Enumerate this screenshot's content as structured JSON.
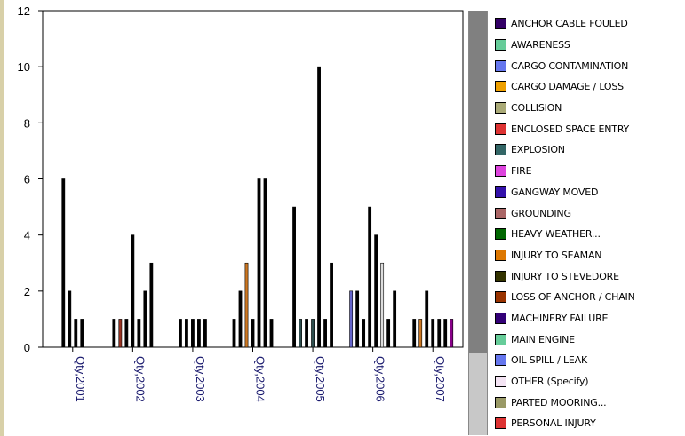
{
  "chart_data": {
    "type": "bar",
    "ylim": [
      0,
      12
    ],
    "yticks": [
      "0",
      "2",
      "4",
      "6",
      "8",
      "10",
      "12"
    ],
    "grid": true,
    "legend_position": "right",
    "categories": [
      "Qty,2001",
      "Qty,2002",
      "Qty,2003",
      "Qty,2004",
      "Qty,2005",
      "Qty,2006",
      "Qty,2007"
    ],
    "groups": [
      {
        "category": "Qty,2001",
        "bars": [
          {
            "value": 6,
            "color": "#000000"
          },
          {
            "value": 2,
            "color": "#000000"
          },
          {
            "value": 1,
            "color": "#000000"
          },
          {
            "value": 1,
            "color": "#000000"
          }
        ]
      },
      {
        "category": "Qty,2002",
        "bars": [
          {
            "value": 1,
            "color": "#000000"
          },
          {
            "value": 1,
            "color": "#993322"
          },
          {
            "value": 1,
            "color": "#000000"
          },
          {
            "value": 4,
            "color": "#000000"
          },
          {
            "value": 1,
            "color": "#000000"
          },
          {
            "value": 2,
            "color": "#000000"
          },
          {
            "value": 3,
            "color": "#000000"
          }
        ]
      },
      {
        "category": "Qty,2003",
        "bars": [
          {
            "value": 1,
            "color": "#000000"
          },
          {
            "value": 1,
            "color": "#000000"
          },
          {
            "value": 1,
            "color": "#000000"
          },
          {
            "value": 1,
            "color": "#000000"
          },
          {
            "value": 1,
            "color": "#000000"
          }
        ]
      },
      {
        "category": "Qty,2004",
        "bars": [
          {
            "value": 1,
            "color": "#000000"
          },
          {
            "value": 2,
            "color": "#000000"
          },
          {
            "value": 3,
            "color": "#cc7722"
          },
          {
            "value": 1,
            "color": "#000000"
          },
          {
            "value": 6,
            "color": "#000000"
          },
          {
            "value": 6,
            "color": "#000000"
          },
          {
            "value": 1,
            "color": "#000000"
          }
        ]
      },
      {
        "category": "Qty,2005",
        "bars": [
          {
            "value": 5,
            "color": "#000000"
          },
          {
            "value": 1,
            "color": "#2f4f4f"
          },
          {
            "value": 1,
            "color": "#000000"
          },
          {
            "value": 1,
            "color": "#2f4f4f"
          },
          {
            "value": 10,
            "color": "#000000"
          },
          {
            "value": 1,
            "color": "#000000"
          },
          {
            "value": 3,
            "color": "#000000"
          }
        ]
      },
      {
        "category": "Qty,2006",
        "bars": [
          {
            "value": 2,
            "color": "#6666cc"
          },
          {
            "value": 2,
            "color": "#000000"
          },
          {
            "value": 1,
            "color": "#000000"
          },
          {
            "value": 5,
            "color": "#000000"
          },
          {
            "value": 4,
            "color": "#000000"
          },
          {
            "value": 3,
            "color": "#dddddd"
          },
          {
            "value": 1,
            "color": "#000000"
          },
          {
            "value": 2,
            "color": "#000000"
          }
        ]
      },
      {
        "category": "Qty,2007",
        "bars": [
          {
            "value": 1,
            "color": "#000000"
          },
          {
            "value": 1,
            "color": "#cc7722"
          },
          {
            "value": 2,
            "color": "#000000"
          },
          {
            "value": 1,
            "color": "#000000"
          },
          {
            "value": 1,
            "color": "#000000"
          },
          {
            "value": 1,
            "color": "#000000"
          },
          {
            "value": 1,
            "color": "#880088"
          }
        ]
      }
    ]
  },
  "legend": [
    {
      "label": "ANCHOR CABLE FOULED",
      "color": "#330066"
    },
    {
      "label": "AWARENESS",
      "color": "#66cc99"
    },
    {
      "label": "CARGO CONTAMINATION",
      "color": "#6677ee"
    },
    {
      "label": "CARGO DAMAGE / LOSS",
      "color": "#eea000"
    },
    {
      "label": "COLLISION",
      "color": "#aaaa77"
    },
    {
      "label": "ENCLOSED SPACE ENTRY",
      "color": "#dd3333"
    },
    {
      "label": "EXPLOSION",
      "color": "#336666"
    },
    {
      "label": "FIRE",
      "color": "#dd44dd"
    },
    {
      "label": "GANGWAY MOVED",
      "color": "#3311aa"
    },
    {
      "label": "GROUNDING",
      "color": "#aa6666"
    },
    {
      "label": "HEAVY WEATHER...",
      "color": "#006600"
    },
    {
      "label": "INJURY TO SEAMAN",
      "color": "#dd7700"
    },
    {
      "label": "INJURY TO STEVEDORE",
      "color": "#333300"
    },
    {
      "label": "LOSS OF ANCHOR / CHAIN",
      "color": "#993300"
    },
    {
      "label": "MACHINERY FAILURE",
      "color": "#330077"
    },
    {
      "label": "MAIN ENGINE",
      "color": "#66cc99"
    },
    {
      "label": "OIL SPILL / LEAK",
      "color": "#6677ee"
    },
    {
      "label": "OTHER (Specify)",
      "color": "#f4e4f4"
    },
    {
      "label": "PARTED MOORING...",
      "color": "#999966"
    },
    {
      "label": "PERSONAL INJURY",
      "color": "#dd3333"
    }
  ]
}
